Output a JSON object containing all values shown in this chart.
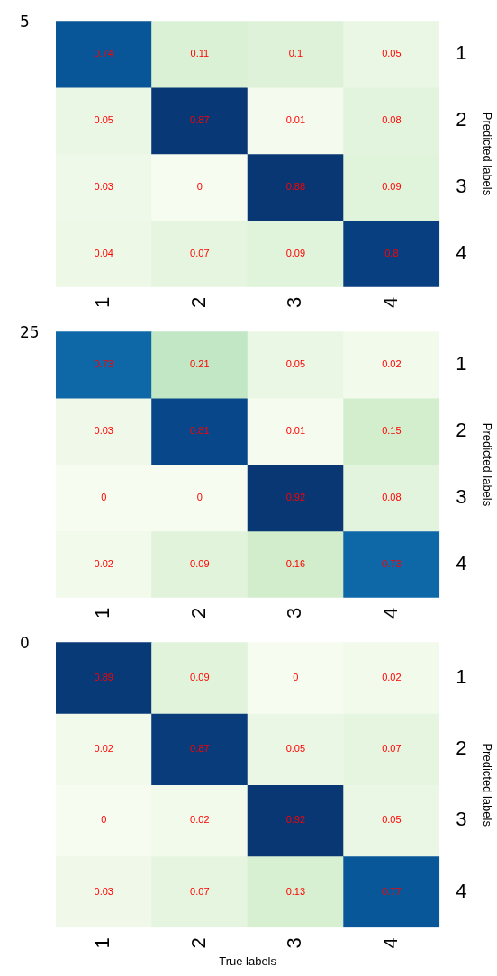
{
  "chart_data": [
    {
      "type": "heatmap",
      "title": "5",
      "ylabel": "Predicted labels",
      "categories": [
        "1",
        "2",
        "3",
        "4"
      ],
      "y_categories": [
        "1",
        "2",
        "3",
        "4"
      ],
      "data_labels": true,
      "cells": [
        [
          0.74,
          0.11,
          0.1,
          0.05
        ],
        [
          0.05,
          0.87,
          0.01,
          0.08
        ],
        [
          0.03,
          0,
          0.88,
          0.09
        ],
        [
          0.04,
          0.07,
          0.09,
          0.8
        ]
      ]
    },
    {
      "type": "heatmap",
      "title": "25",
      "ylabel": "Predicted labels",
      "categories": [
        "1",
        "2",
        "3",
        "4"
      ],
      "y_categories": [
        "1",
        "2",
        "3",
        "4"
      ],
      "data_labels": true,
      "cells": [
        [
          0.73,
          0.21,
          0.05,
          0.02
        ],
        [
          0.03,
          0.81,
          0.01,
          0.15
        ],
        [
          0,
          0,
          0.92,
          0.08
        ],
        [
          0.02,
          0.09,
          0.16,
          0.73
        ]
      ]
    },
    {
      "type": "heatmap",
      "title": "0",
      "xlabel": "True labels",
      "ylabel": "Predicted labels",
      "categories": [
        "1",
        "2",
        "3",
        "4"
      ],
      "y_categories": [
        "1",
        "2",
        "3",
        "4"
      ],
      "data_labels": true,
      "cells": [
        [
          0.89,
          0.09,
          0,
          0.02
        ],
        [
          0.02,
          0.87,
          0.05,
          0.07
        ],
        [
          0,
          0.02,
          0.92,
          0.05
        ],
        [
          0.03,
          0.07,
          0.13,
          0.77
        ]
      ]
    }
  ]
}
